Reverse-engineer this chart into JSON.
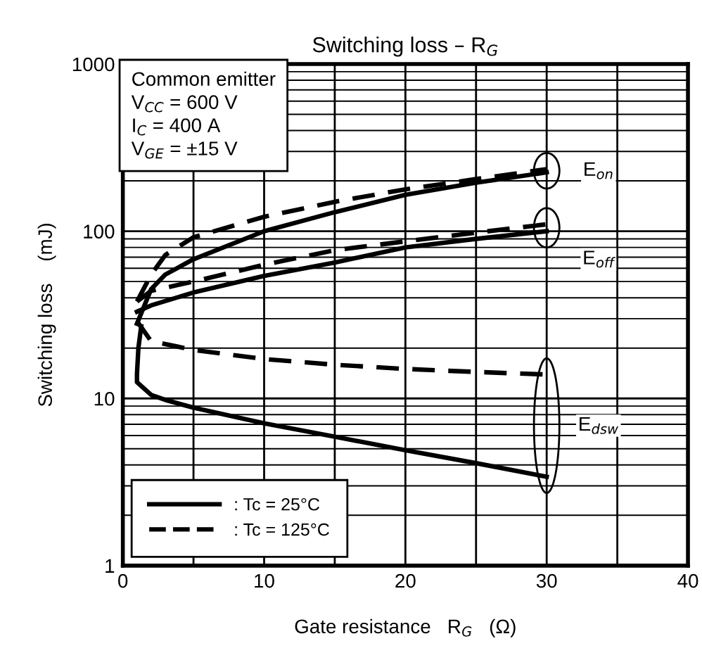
{
  "chart_data": {
    "type": "line",
    "title": "Switching loss – R$_{G}$",
    "xlabel": "Gate resistance   R$_{G}$   (Ω)",
    "ylabel": "Switching loss    (mJ)",
    "log": "y",
    "xlim": [
      0,
      40
    ],
    "ylim": [
      1,
      1000
    ],
    "xticks": [
      0,
      10,
      20,
      30,
      40
    ],
    "yticks": [
      1,
      10,
      100,
      1000
    ],
    "grid": true,
    "legend": "bottom left",
    "series": [
      {
        "name": ": Tc = 25°C",
        "color": "#000000",
        "line_style": "solid",
        "x": [
          1,
          2,
          3,
          5,
          10,
          15,
          20,
          25,
          30
        ],
        "values": [
          28,
          45,
          55,
          68,
          100,
          130,
          165,
          195,
          225
        ]
      },
      {
        "name": ": Tc = 125°C",
        "color": "#000000",
        "line_style": "dashed",
        "x": [
          1,
          2,
          3,
          5,
          10,
          15,
          20,
          25,
          30
        ],
        "values": [
          38,
          55,
          72,
          92,
          122,
          150,
          178,
          205,
          235
        ]
      },
      {
        "color": "#000000",
        "line_style": "solid",
        "x": [
          1,
          2,
          5,
          10,
          15,
          20,
          25,
          30
        ],
        "values": [
          33,
          36,
          43,
          54,
          65,
          80,
          90,
          100
        ]
      },
      {
        "color": "#000000",
        "line_style": "dashed",
        "x": [
          1,
          2,
          5,
          10,
          15,
          20,
          25,
          30
        ],
        "values": [
          38,
          44,
          50,
          63,
          77,
          87,
          98,
          110
        ]
      },
      {
        "color": "#000000",
        "line_style": "solid",
        "x": [
          1.3,
          1.1,
          1,
          1,
          2,
          3,
          5,
          10,
          15,
          20,
          25,
          30
        ],
        "values": [
          27,
          20,
          14,
          12.5,
          10.5,
          9.8,
          8.8,
          7.1,
          5.9,
          4.9,
          4.1,
          3.4
        ]
      },
      {
        "color": "#000000",
        "line_style": "dashed",
        "x": [
          1,
          2,
          5,
          10,
          15,
          20,
          25,
          30
        ],
        "values": [
          29,
          22,
          19.5,
          17.2,
          15.9,
          15,
          14.4,
          13.9
        ]
      }
    ],
    "annotations": [
      "Common emitter",
      "V$_{CC}$ = 600 V",
      "I$_{C}$ = 400 A",
      "V$_{GE}$ = ±15 V",
      "E$_{on}$",
      "E$_{off}$",
      "E$_{dsw}$"
    ]
  }
}
